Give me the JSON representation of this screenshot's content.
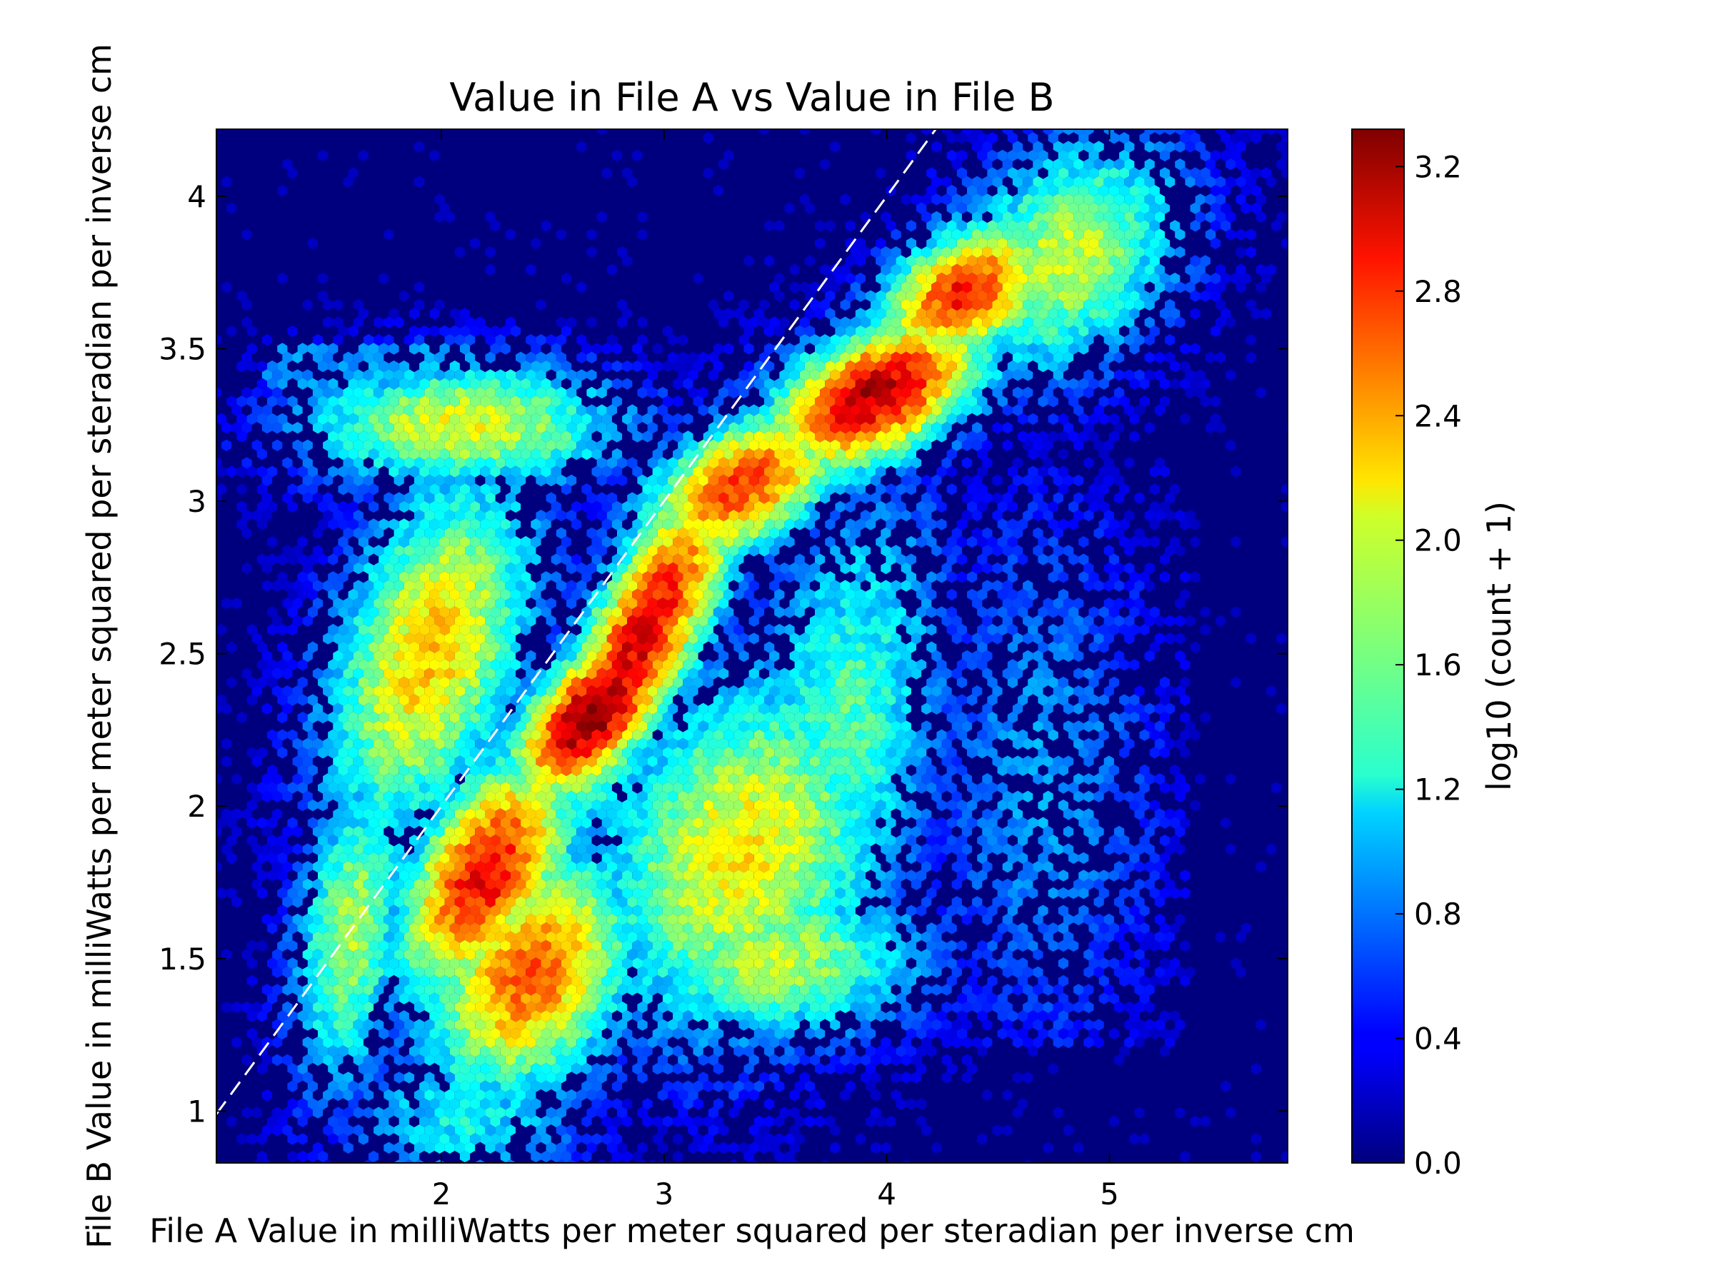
{
  "chart_data": {
    "type": "heatmap",
    "subtype": "hexbin",
    "title": "Value in File A vs Value in File B",
    "xlabel": "File A Value in milliWatts per meter squared per steradian per inverse cm",
    "ylabel": "File B Value in milliWatts per meter squared per steradian per inverse cm",
    "xlim": [
      0.99,
      5.8
    ],
    "ylim": [
      0.83,
      4.22
    ],
    "x_ticks": [
      2,
      3,
      4,
      5
    ],
    "x_tick_labels": [
      "2",
      "3",
      "4",
      "5"
    ],
    "y_ticks": [
      1,
      1.5,
      2,
      2.5,
      3,
      3.5,
      4
    ],
    "y_tick_labels": [
      "1",
      "1.5",
      "2",
      "2.5",
      "3",
      "3.5",
      "4"
    ],
    "grid": false,
    "reference_line": {
      "style": "dashed",
      "color": "#ffffff",
      "slope": 1,
      "intercept": 0
    },
    "background_color": "#00007f",
    "colorbar": {
      "label": "log10 (count + 1)",
      "range": [
        0.0,
        3.32
      ],
      "ticks": [
        0.0,
        0.4,
        0.8,
        1.2,
        1.6,
        2.0,
        2.4,
        2.8,
        3.2
      ],
      "tick_labels": [
        "0.0",
        "0.4",
        "0.8",
        "1.2",
        "1.6",
        "2.0",
        "2.4",
        "2.8",
        "3.2"
      ],
      "colormap": "jet"
    },
    "density_peaks": [
      {
        "x": 2.7,
        "y": 2.3,
        "value": 3.3
      },
      {
        "x": 2.85,
        "y": 2.45,
        "value": 3.2
      },
      {
        "x": 3.95,
        "y": 3.35,
        "value": 3.1
      },
      {
        "x": 4.3,
        "y": 3.7,
        "value": 2.9
      },
      {
        "x": 2.2,
        "y": 1.8,
        "value": 2.9
      },
      {
        "x": 2.5,
        "y": 1.5,
        "value": 2.5
      },
      {
        "x": 3.2,
        "y": 2.9,
        "value": 2.8
      },
      {
        "x": 2.9,
        "y": 2.85,
        "value": 2.8
      }
    ]
  }
}
